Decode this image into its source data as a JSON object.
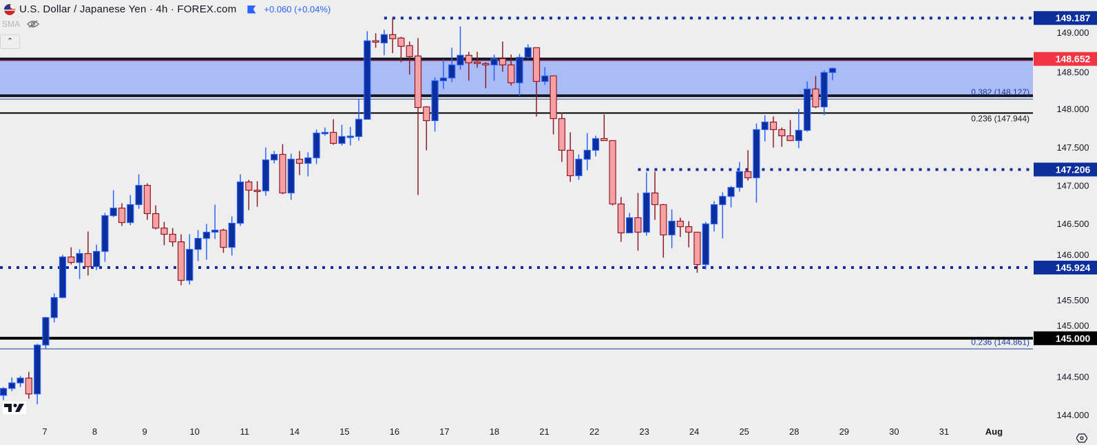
{
  "header": {
    "title": "U.S. Dollar / Japanese Yen · 4h · FOREX.com",
    "change": "+0.060 (+0.04%)",
    "indicator": "SMA",
    "icons": [
      "us-flag-icon",
      "bookmark-flag-icon",
      "eye-crossed-icon",
      "chevron-up-icon",
      "tradingview-logo-icon",
      "settings-icon"
    ]
  },
  "colors": {
    "bull_fill": "#0c2f9b",
    "bull_border": "#2962ff",
    "bear_fill": "#f7a1a5",
    "bear_border": "#8e1a26",
    "zone": "#aabbf5",
    "level_blue": "#0c2f9b",
    "last_price": "#f23645"
  },
  "chart_data": {
    "type": "candlestick",
    "timeframe": "4h",
    "ylim": [
      143.9,
      149.3
    ],
    "grid": false,
    "y_ticks": [
      "149.000",
      "148.500",
      "148.000",
      "147.500",
      "147.000",
      "146.500",
      "146.000",
      "145.500",
      "145.000",
      "144.500",
      "144.000"
    ],
    "x_ticks": [
      "7",
      "8",
      "9",
      "10",
      "11",
      "14",
      "15",
      "16",
      "17",
      "18",
      "21",
      "22",
      "23",
      "24",
      "25",
      "28",
      "29",
      "30",
      "31",
      "Aug"
    ],
    "candles_ohlc": [
      [
        144.254,
        144.362,
        144.191,
        144.344
      ],
      [
        144.344,
        144.488,
        144.308,
        144.416
      ],
      [
        144.416,
        144.506,
        144.362,
        144.479
      ],
      [
        144.479,
        144.56,
        144.209,
        144.272
      ],
      [
        144.272,
        144.929,
        144.137,
        144.911
      ],
      [
        144.911,
        145.28,
        144.866,
        145.271
      ],
      [
        145.271,
        145.586,
        145.208,
        145.532
      ],
      [
        145.532,
        146.09,
        145.523,
        146.063
      ],
      [
        146.063,
        146.189,
        145.964,
        145.991
      ],
      [
        145.991,
        146.162,
        145.775,
        146.108
      ],
      [
        146.108,
        146.396,
        145.82,
        145.937
      ],
      [
        145.937,
        146.225,
        145.892,
        146.135
      ],
      [
        146.135,
        146.639,
        146.0,
        146.603
      ],
      [
        146.603,
        146.936,
        146.585,
        146.702
      ],
      [
        146.702,
        146.765,
        146.468,
        146.513
      ],
      [
        146.513,
        146.873,
        146.477,
        146.747
      ],
      [
        146.747,
        147.143,
        146.693,
        146.999
      ],
      [
        146.999,
        147.026,
        146.549,
        146.63
      ],
      [
        146.63,
        146.738,
        146.423,
        146.441
      ],
      [
        146.441,
        146.522,
        146.216,
        146.36
      ],
      [
        146.36,
        146.441,
        146.198,
        146.261
      ],
      [
        146.261,
        146.36,
        145.694,
        145.757
      ],
      [
        145.757,
        146.36,
        145.703,
        146.162
      ],
      [
        146.162,
        146.414,
        146.009,
        146.306
      ],
      [
        146.306,
        146.495,
        146.027,
        146.387
      ],
      [
        146.387,
        146.747,
        146.297,
        146.414
      ],
      [
        146.414,
        146.432,
        146.117,
        146.189
      ],
      [
        146.189,
        146.594,
        146.081,
        146.504
      ],
      [
        146.504,
        147.143,
        146.468,
        147.044
      ],
      [
        147.044,
        147.071,
        146.675,
        146.936
      ],
      [
        146.936,
        147.053,
        146.72,
        146.927
      ],
      [
        146.927,
        147.494,
        146.864,
        147.332
      ],
      [
        147.332,
        147.449,
        147.287,
        147.404
      ],
      [
        147.404,
        147.539,
        146.882,
        146.9
      ],
      [
        146.9,
        147.413,
        146.81,
        147.341
      ],
      [
        147.341,
        147.449,
        147.134,
        147.287
      ],
      [
        147.287,
        147.431,
        147.116,
        147.359
      ],
      [
        147.359,
        147.728,
        147.278,
        147.683
      ],
      [
        147.683,
        147.755,
        147.647,
        147.692
      ],
      [
        147.692,
        147.863,
        147.53,
        147.548
      ],
      [
        147.548,
        147.791,
        147.521,
        147.638
      ],
      [
        147.634,
        147.764,
        147.521,
        147.643
      ],
      [
        147.638,
        148.124,
        147.584,
        147.863
      ],
      [
        147.863,
        149.015,
        147.863,
        148.889
      ],
      [
        148.889,
        148.988,
        148.799,
        148.871
      ],
      [
        148.862,
        149.033,
        148.7,
        148.97
      ],
      [
        148.97,
        149.186,
        148.727,
        148.916
      ],
      [
        148.925,
        148.943,
        148.61,
        148.817
      ],
      [
        148.826,
        148.88,
        148.448,
        148.682
      ],
      [
        148.691,
        148.925,
        146.873,
        148.016
      ],
      [
        148.025,
        148.034,
        147.458,
        147.845
      ],
      [
        147.845,
        148.412,
        147.701,
        148.367
      ],
      [
        148.367,
        148.646,
        148.259,
        148.403
      ],
      [
        148.403,
        148.799,
        148.349,
        148.574
      ],
      [
        148.574,
        149.078,
        148.511,
        148.7
      ],
      [
        148.7,
        148.745,
        148.367,
        148.601
      ],
      [
        148.61,
        148.745,
        148.538,
        148.592
      ],
      [
        148.592,
        148.61,
        148.268,
        148.574
      ],
      [
        148.574,
        148.709,
        148.367,
        148.655
      ],
      [
        148.655,
        148.88,
        148.484,
        148.574
      ],
      [
        148.574,
        148.709,
        148.304,
        148.34
      ],
      [
        148.34,
        148.718,
        148.169,
        148.673
      ],
      [
        148.673,
        148.844,
        148.655,
        148.799
      ],
      [
        148.799,
        148.799,
        147.899,
        148.358
      ],
      [
        148.358,
        148.547,
        148.313,
        148.43
      ],
      [
        148.43,
        148.43,
        147.665,
        147.872
      ],
      [
        147.872,
        147.953,
        147.305,
        147.458
      ],
      [
        147.458,
        147.692,
        147.044,
        147.125
      ],
      [
        147.125,
        147.404,
        147.071,
        147.341
      ],
      [
        147.341,
        147.683,
        147.197,
        147.458
      ],
      [
        147.458,
        147.647,
        147.377,
        147.611
      ],
      [
        147.611,
        147.926,
        147.584,
        147.584
      ],
      [
        147.584,
        147.584,
        146.738,
        146.756
      ],
      [
        146.756,
        146.846,
        146.261,
        146.378
      ],
      [
        146.378,
        146.639,
        146.378,
        146.576
      ],
      [
        146.576,
        146.9,
        146.144,
        146.387
      ],
      [
        146.387,
        147.17,
        146.342,
        146.9
      ],
      [
        146.9,
        147.179,
        146.549,
        146.747
      ],
      [
        146.747,
        146.756,
        146.054,
        146.351
      ],
      [
        146.351,
        146.684,
        146.18,
        146.531
      ],
      [
        146.531,
        146.576,
        146.324,
        146.459
      ],
      [
        146.459,
        146.531,
        146.189,
        146.387
      ],
      [
        146.387,
        146.387,
        145.856,
        145.964
      ],
      [
        145.964,
        146.522,
        145.901,
        146.495
      ],
      [
        146.495,
        146.792,
        146.396,
        146.747
      ],
      [
        146.747,
        146.909,
        146.306,
        146.855
      ],
      [
        146.855,
        146.99,
        146.711,
        146.972
      ],
      [
        146.972,
        147.305,
        146.918,
        147.179
      ],
      [
        147.179,
        147.458,
        147.062,
        147.098
      ],
      [
        147.098,
        147.809,
        146.774,
        147.728
      ],
      [
        147.728,
        147.917,
        147.575,
        147.827
      ],
      [
        147.827,
        147.899,
        147.494,
        147.728
      ],
      [
        147.728,
        147.755,
        147.503,
        147.647
      ],
      [
        147.647,
        147.854,
        147.584,
        147.584
      ],
      [
        147.584,
        147.998,
        147.485,
        147.719
      ],
      [
        147.719,
        148.358,
        147.701,
        148.259
      ],
      [
        148.259,
        148.43,
        148.007,
        148.025
      ],
      [
        148.025,
        148.502,
        147.917,
        148.475
      ],
      [
        148.475,
        148.538,
        148.376,
        148.529
      ]
    ],
    "levels": [
      {
        "price": 149.187,
        "label": "149.187",
        "style": "dotted",
        "color": "#0c2f9b",
        "from_candle": 45
      },
      {
        "price": 148.652,
        "label": "148.652",
        "style": "solid-thick",
        "color": "#131722",
        "badge": "#f23645"
      },
      {
        "price": 148.17,
        "style": "solid-thick",
        "color": "#131722"
      },
      {
        "price": 148.127,
        "label": "0.382 (148.127)",
        "style": "thin",
        "color": "#1a3a9c"
      },
      {
        "price": 147.944,
        "label": "0.236 (147.944)",
        "style": "solid",
        "color": "#000000"
      },
      {
        "price": 147.206,
        "label": "147.206",
        "style": "dotted",
        "color": "#0c2f9b",
        "from_candle": 75
      },
      {
        "price": 145.924,
        "label": "145.924",
        "style": "dotted",
        "color": "#0c2f9b"
      },
      {
        "price": 145.0,
        "label": "145.000",
        "style": "solid-thick",
        "color": "#000000",
        "badge": "#000000"
      },
      {
        "price": 144.861,
        "label": "0.236 (144.861)",
        "style": "thin",
        "color": "#1a3a9c"
      }
    ],
    "zone": {
      "from": 148.17,
      "to": 148.652
    }
  }
}
